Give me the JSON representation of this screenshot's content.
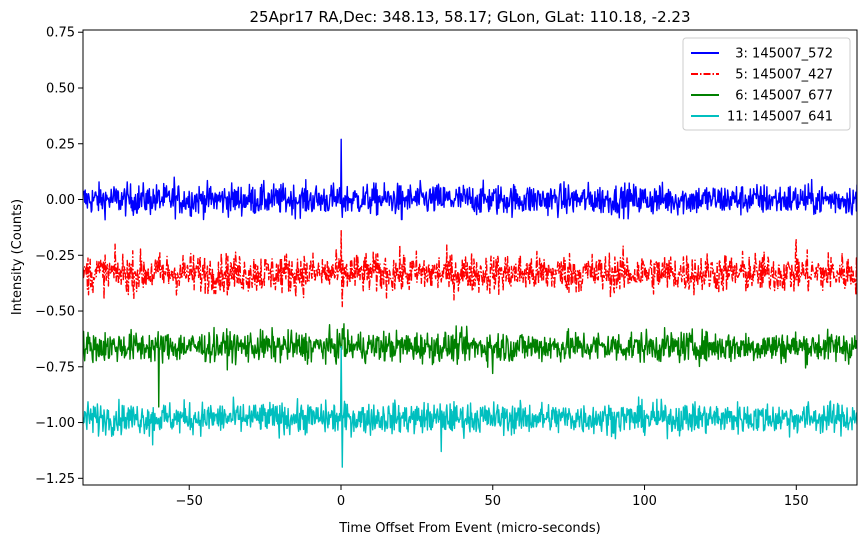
{
  "chart_data": {
    "type": "line",
    "title": "25Apr17 RA,Dec:  348.13,  58.17; GLon, GLat:  110.18,  -2.23",
    "xlabel": "Time Offset From Event (micro-seconds)",
    "ylabel": "Intensity (Counts)",
    "xlim": [
      -85,
      170
    ],
    "ylim": [
      -1.28,
      0.76
    ],
    "xticks": [
      -50,
      0,
      50,
      100,
      150
    ],
    "xtick_labels": [
      "−50",
      "0",
      "50",
      "100",
      "150"
    ],
    "yticks": [
      0.75,
      0.5,
      0.25,
      0.0,
      -0.25,
      -0.5,
      -0.75,
      -1.0,
      -1.25
    ],
    "ytick_labels": [
      "0.75",
      "0.50",
      "0.25",
      "0.00",
      "−0.25",
      "−0.50",
      "−0.75",
      "−1.00",
      "−1.25"
    ],
    "legend_position": "top-right",
    "grid": false,
    "series": [
      {
        "name": "  3: 145007_572",
        "color": "#0000ff",
        "style": "solid",
        "baseline": 0.0,
        "noise": 0.035,
        "spikes": [
          {
            "x": 0.0,
            "y": 0.27
          },
          {
            "x": 0.4,
            "y": -0.08
          },
          {
            "x": -55,
            "y": 0.1
          },
          {
            "x": 20,
            "y": -0.09
          }
        ]
      },
      {
        "name": "  5: 145007_427",
        "color": "#ff0000",
        "style": "dashdot",
        "baseline": -0.33,
        "noise": 0.045,
        "spikes": [
          {
            "x": 0.0,
            "y": -0.14
          },
          {
            "x": 0.4,
            "y": -0.48
          },
          {
            "x": 150,
            "y": -0.18
          }
        ]
      },
      {
        "name": "  6: 145007_677",
        "color": "#008000",
        "style": "solid",
        "baseline": -0.66,
        "noise": 0.035,
        "spikes": [
          {
            "x": -60,
            "y": -0.93
          },
          {
            "x": 0.5,
            "y": -0.58
          },
          {
            "x": 50,
            "y": -0.78
          }
        ]
      },
      {
        "name": "11: 145007_641",
        "color": "#00bfbf",
        "style": "solid",
        "baseline": -0.98,
        "noise": 0.035,
        "spikes": [
          {
            "x": 0.0,
            "y": -0.66
          },
          {
            "x": 0.4,
            "y": -1.2
          },
          {
            "x": -62,
            "y": -1.1
          },
          {
            "x": 33,
            "y": -1.13
          }
        ]
      }
    ]
  }
}
